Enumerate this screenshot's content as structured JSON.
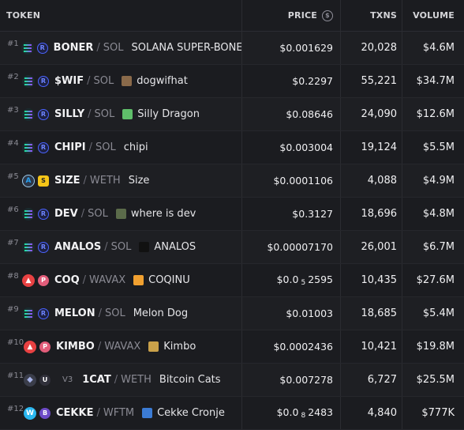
{
  "header": {
    "token": "TOKEN",
    "price": "PRICE",
    "txns": "TXNS",
    "volume": "VOLUME",
    "currency_icon": "dollar-coin-icon"
  },
  "rows": [
    {
      "rank": "#1",
      "chain": "solana",
      "dex": "raydium",
      "symbol": "BONER",
      "quote": "SOL",
      "name": "SOLANA SUPER-BONER",
      "image": false,
      "price_pre": "$0.001629",
      "price_sub": "",
      "price_post": "",
      "txns": "20,028",
      "volume": "$4.6M"
    },
    {
      "rank": "#2",
      "chain": "solana",
      "dex": "raydium",
      "symbol": "$WIF",
      "quote": "SOL",
      "name": "dogwifhat",
      "image": true,
      "image_color": "#8a6a4a",
      "price_pre": "$0.2297",
      "price_sub": "",
      "price_post": "",
      "txns": "55,221",
      "volume": "$34.7M"
    },
    {
      "rank": "#3",
      "chain": "solana",
      "dex": "raydium",
      "symbol": "SILLY",
      "quote": "SOL",
      "name": "Silly Dragon",
      "image": true,
      "image_color": "#5fbf6a",
      "price_pre": "$0.08646",
      "price_sub": "",
      "price_post": "",
      "txns": "24,090",
      "volume": "$12.6M"
    },
    {
      "rank": "#4",
      "chain": "solana",
      "dex": "raydium",
      "symbol": "CHIPI",
      "quote": "SOL",
      "name": "chipi",
      "image": false,
      "price_pre": "$0.003004",
      "price_sub": "",
      "price_post": "",
      "txns": "19,124",
      "volume": "$5.5M"
    },
    {
      "rank": "#5",
      "chain": "arbitrum",
      "dex": "sushiswap",
      "symbol": "SIZE",
      "quote": "WETH",
      "name": "Size",
      "image": false,
      "price_pre": "$0.0001106",
      "price_sub": "",
      "price_post": "",
      "txns": "4,088",
      "volume": "$4.9M"
    },
    {
      "rank": "#6",
      "chain": "solana",
      "dex": "raydium",
      "symbol": "DEV",
      "quote": "SOL",
      "name": "where is dev",
      "image": true,
      "image_color": "#5b6b4a",
      "price_pre": "$0.3127",
      "price_sub": "",
      "price_post": "",
      "txns": "18,696",
      "volume": "$4.8M"
    },
    {
      "rank": "#7",
      "chain": "solana",
      "dex": "raydium",
      "symbol": "ANALOS",
      "quote": "SOL",
      "name": "ANALOS",
      "image": true,
      "image_color": "#111111",
      "price_pre": "$0.00007170",
      "price_sub": "",
      "price_post": "",
      "txns": "26,001",
      "volume": "$6.7M"
    },
    {
      "rank": "#8",
      "chain": "avalanche",
      "dex": "pangolin",
      "symbol": "COQ",
      "quote": "WAVAX",
      "name": "COQINU",
      "image": true,
      "image_color": "#f0a030",
      "price_pre": "$0.0",
      "price_sub": "5",
      "price_post": "2595",
      "txns": "10,435",
      "volume": "$27.6M"
    },
    {
      "rank": "#9",
      "chain": "solana",
      "dex": "raydium",
      "symbol": "MELON",
      "quote": "SOL",
      "name": "Melon Dog",
      "image": false,
      "price_pre": "$0.01003",
      "price_sub": "",
      "price_post": "",
      "txns": "18,685",
      "volume": "$5.4M"
    },
    {
      "rank": "#10",
      "chain": "avalanche",
      "dex": "pangolin",
      "symbol": "KIMBO",
      "quote": "WAVAX",
      "name": "Kimbo",
      "image": true,
      "image_color": "#c9a14a",
      "price_pre": "$0.0002436",
      "price_sub": "",
      "price_post": "",
      "txns": "10,421",
      "volume": "$19.8M"
    },
    {
      "rank": "#11",
      "chain": "ethereum",
      "dex": "uniswap",
      "version": "V3",
      "symbol": "1CAT",
      "quote": "WETH",
      "name": "Bitcoin Cats",
      "image": false,
      "price_pre": "$0.007278",
      "price_sub": "",
      "price_post": "",
      "txns": "6,727",
      "volume": "$25.5M"
    },
    {
      "rank": "#12",
      "chain": "wanchain",
      "dex": "bunny",
      "symbol": "CEKKE",
      "quote": "WFTM",
      "name": "Cekke Cronje",
      "image": true,
      "image_color": "#3b7bd4",
      "price_pre": "$0.0",
      "price_sub": "8",
      "price_post": "2483",
      "txns": "4,840",
      "volume": "$777K"
    }
  ]
}
